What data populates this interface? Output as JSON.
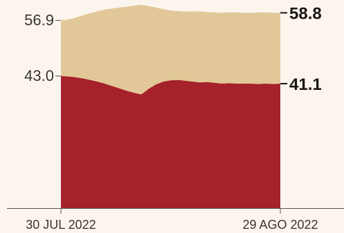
{
  "chart_data": {
    "type": "area",
    "x_ticks": [
      "30 JUL 2022",
      "29 AGO 2022"
    ],
    "series": [
      {
        "color": "#e2c898",
        "values": [
          56.9,
          57.1,
          57.6,
          58.2,
          58.7,
          59.2,
          59.6,
          59.9,
          60.1,
          60.3,
          60.6,
          60.8,
          60.5,
          60.1,
          59.7,
          59.4,
          59.2,
          59.1,
          59.2,
          59.1,
          59.0,
          58.9,
          58.8,
          58.9,
          58.9,
          58.8,
          58.8,
          58.9,
          58.9,
          58.8,
          58.8
        ],
        "start_label": "56.9",
        "end_label": "58.8"
      },
      {
        "color": "#a5222a",
        "values": [
          43.0,
          42.9,
          42.7,
          42.4,
          42.0,
          41.6,
          41.1,
          40.5,
          39.9,
          39.3,
          38.8,
          38.4,
          39.8,
          40.9,
          41.6,
          41.9,
          42.0,
          41.8,
          41.6,
          41.4,
          41.5,
          41.3,
          41.1,
          41.2,
          41.1,
          41.1,
          41.1,
          41.0,
          41.1,
          41.0,
          41.1
        ],
        "start_label": "43.0",
        "end_label": "41.1"
      }
    ],
    "ylim": [
      10,
      62
    ]
  }
}
